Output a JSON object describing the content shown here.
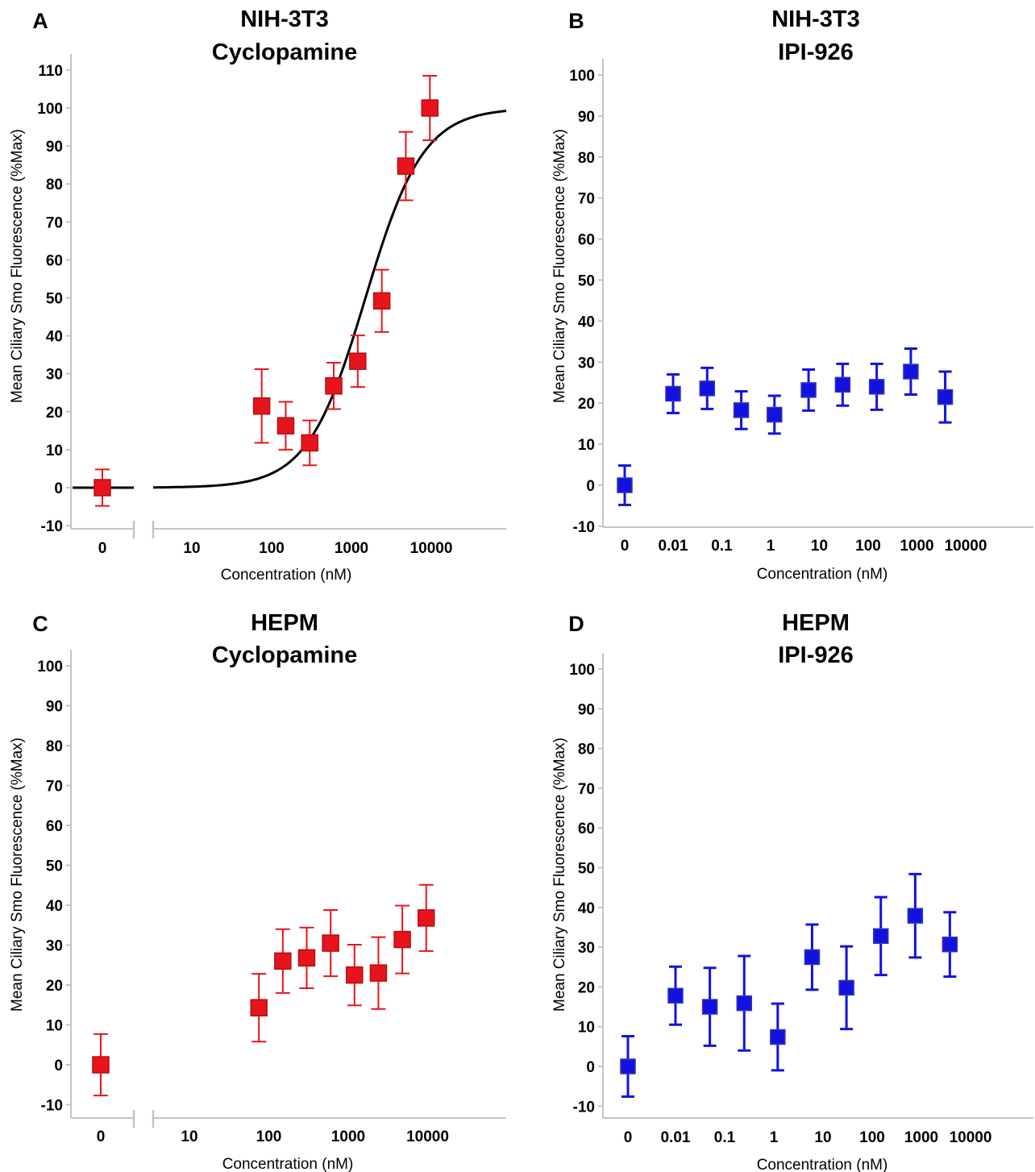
{
  "chart_data": [
    {
      "panel": "A",
      "type": "scatter",
      "title": [
        "NIH-3T3",
        "Cyclopamine"
      ],
      "xlabel": "Concentration (nM)",
      "ylabel": "Mean Ciliary Smo Fluorescence (%Max)",
      "xscale": "log",
      "broken_axis": true,
      "ylim": [
        -12,
        115
      ],
      "yticks": [
        -10,
        0,
        10,
        20,
        30,
        40,
        50,
        60,
        70,
        80,
        90,
        100,
        110
      ],
      "xticks": [
        {
          "x": 0,
          "label": "0"
        },
        {
          "x": 10,
          "label": "10"
        },
        {
          "x": 100,
          "label": "100"
        },
        {
          "x": 1000,
          "label": "1000"
        },
        {
          "x": 10000,
          "label": "10000"
        }
      ],
      "color": "#e8141b",
      "fit_curve": {
        "bottom": 0,
        "top": 100,
        "ec50": 1500,
        "hill": 1.2
      },
      "series": [
        {
          "x": 0,
          "y": 0,
          "yerr": 4.8
        },
        {
          "x": 75,
          "y": 21.5,
          "yerr": 9.7
        },
        {
          "x": 150,
          "y": 16.3,
          "yerr": 6.3
        },
        {
          "x": 300,
          "y": 11.8,
          "yerr": 5.9
        },
        {
          "x": 600,
          "y": 26.8,
          "yerr": 6.1
        },
        {
          "x": 1200,
          "y": 33.3,
          "yerr": 6.8
        },
        {
          "x": 2400,
          "y": 49.2,
          "yerr": 8.2
        },
        {
          "x": 4800,
          "y": 84.7,
          "yerr": 9.0
        },
        {
          "x": 9600,
          "y": 100,
          "yerr": 8.5
        }
      ]
    },
    {
      "panel": "B",
      "type": "scatter",
      "title": [
        "NIH-3T3",
        "IPI-926"
      ],
      "xlabel": "Concentration (nM)",
      "ylabel": "Mean Ciliary Smo Fluorescence (%Max)",
      "xscale": "log",
      "broken_axis": false,
      "ylim": [
        -12,
        105
      ],
      "yticks": [
        -10,
        0,
        10,
        20,
        30,
        40,
        50,
        60,
        70,
        80,
        90,
        100
      ],
      "xticks": [
        {
          "x": 0,
          "label": "0"
        },
        {
          "x": 0.01,
          "label": "0.01"
        },
        {
          "x": 0.1,
          "label": "0.1"
        },
        {
          "x": 1,
          "label": "1"
        },
        {
          "x": 10,
          "label": "10"
        },
        {
          "x": 100,
          "label": "100"
        },
        {
          "x": 1000,
          "label": "1000"
        },
        {
          "x": 10000,
          "label": "10000"
        }
      ],
      "color": "#1212e0",
      "series": [
        {
          "x": 0,
          "y": 0,
          "yerr": 4.8
        },
        {
          "x": 0.01,
          "y": 22.3,
          "yerr": 4.7
        },
        {
          "x": 0.05,
          "y": 23.6,
          "yerr": 5.0
        },
        {
          "x": 0.25,
          "y": 18.3,
          "yerr": 4.6
        },
        {
          "x": 1.2,
          "y": 17.2,
          "yerr": 4.6
        },
        {
          "x": 6,
          "y": 23.2,
          "yerr": 5.0
        },
        {
          "x": 30,
          "y": 24.5,
          "yerr": 5.1
        },
        {
          "x": 150,
          "y": 24.0,
          "yerr": 5.6
        },
        {
          "x": 750,
          "y": 27.7,
          "yerr": 5.6
        },
        {
          "x": 3800,
          "y": 21.5,
          "yerr": 6.2
        }
      ]
    },
    {
      "panel": "C",
      "type": "scatter",
      "title": [
        "HEPM",
        "Cyclopamine"
      ],
      "xlabel": "Concentration (nM)",
      "ylabel": "Mean Ciliary Smo Fluorescence (%Max)",
      "xscale": "log",
      "broken_axis": true,
      "ylim": [
        -12,
        105
      ],
      "yticks": [
        -10,
        0,
        10,
        20,
        30,
        40,
        50,
        60,
        70,
        80,
        90,
        100
      ],
      "xticks": [
        {
          "x": 0,
          "label": "0"
        },
        {
          "x": 10,
          "label": "10"
        },
        {
          "x": 100,
          "label": "100"
        },
        {
          "x": 1000,
          "label": "1000"
        },
        {
          "x": 10000,
          "label": "10000"
        }
      ],
      "color": "#e8141b",
      "series": [
        {
          "x": 0,
          "y": 0,
          "yerr": 7.7
        },
        {
          "x": 75,
          "y": 14.3,
          "yerr": 8.5
        },
        {
          "x": 150,
          "y": 26.0,
          "yerr": 8.0
        },
        {
          "x": 300,
          "y": 26.8,
          "yerr": 7.6
        },
        {
          "x": 600,
          "y": 30.5,
          "yerr": 8.3
        },
        {
          "x": 1200,
          "y": 22.5,
          "yerr": 7.6
        },
        {
          "x": 2400,
          "y": 23.0,
          "yerr": 9.0
        },
        {
          "x": 4800,
          "y": 31.4,
          "yerr": 8.5
        },
        {
          "x": 9600,
          "y": 36.8,
          "yerr": 8.3
        }
      ]
    },
    {
      "panel": "D",
      "type": "scatter",
      "title": [
        "HEPM",
        "IPI-926"
      ],
      "xlabel": "Concentration (nM)",
      "ylabel": "Mean Ciliary Smo Fluorescence (%Max)",
      "xscale": "log",
      "broken_axis": false,
      "ylim": [
        -12,
        105
      ],
      "yticks": [
        -10,
        0,
        10,
        20,
        30,
        40,
        50,
        60,
        70,
        80,
        90,
        100
      ],
      "xticks": [
        {
          "x": 0,
          "label": "0"
        },
        {
          "x": 0.01,
          "label": "0.01"
        },
        {
          "x": 0.1,
          "label": "0.1"
        },
        {
          "x": 1,
          "label": "1"
        },
        {
          "x": 10,
          "label": "10"
        },
        {
          "x": 100,
          "label": "100"
        },
        {
          "x": 1000,
          "label": "1000"
        },
        {
          "x": 10000,
          "label": "10000"
        }
      ],
      "color": "#1212e0",
      "series": [
        {
          "x": 0,
          "y": 0,
          "yerr": 7.6
        },
        {
          "x": 0.01,
          "y": 17.8,
          "yerr": 7.3
        },
        {
          "x": 0.05,
          "y": 15.0,
          "yerr": 9.8
        },
        {
          "x": 0.25,
          "y": 15.9,
          "yerr": 11.9
        },
        {
          "x": 1.2,
          "y": 7.4,
          "yerr": 8.4
        },
        {
          "x": 6,
          "y": 27.5,
          "yerr": 8.2
        },
        {
          "x": 30,
          "y": 19.8,
          "yerr": 10.4
        },
        {
          "x": 150,
          "y": 32.8,
          "yerr": 9.8
        },
        {
          "x": 750,
          "y": 37.9,
          "yerr": 10.5
        },
        {
          "x": 3800,
          "y": 30.7,
          "yerr": 8.1
        }
      ]
    }
  ]
}
